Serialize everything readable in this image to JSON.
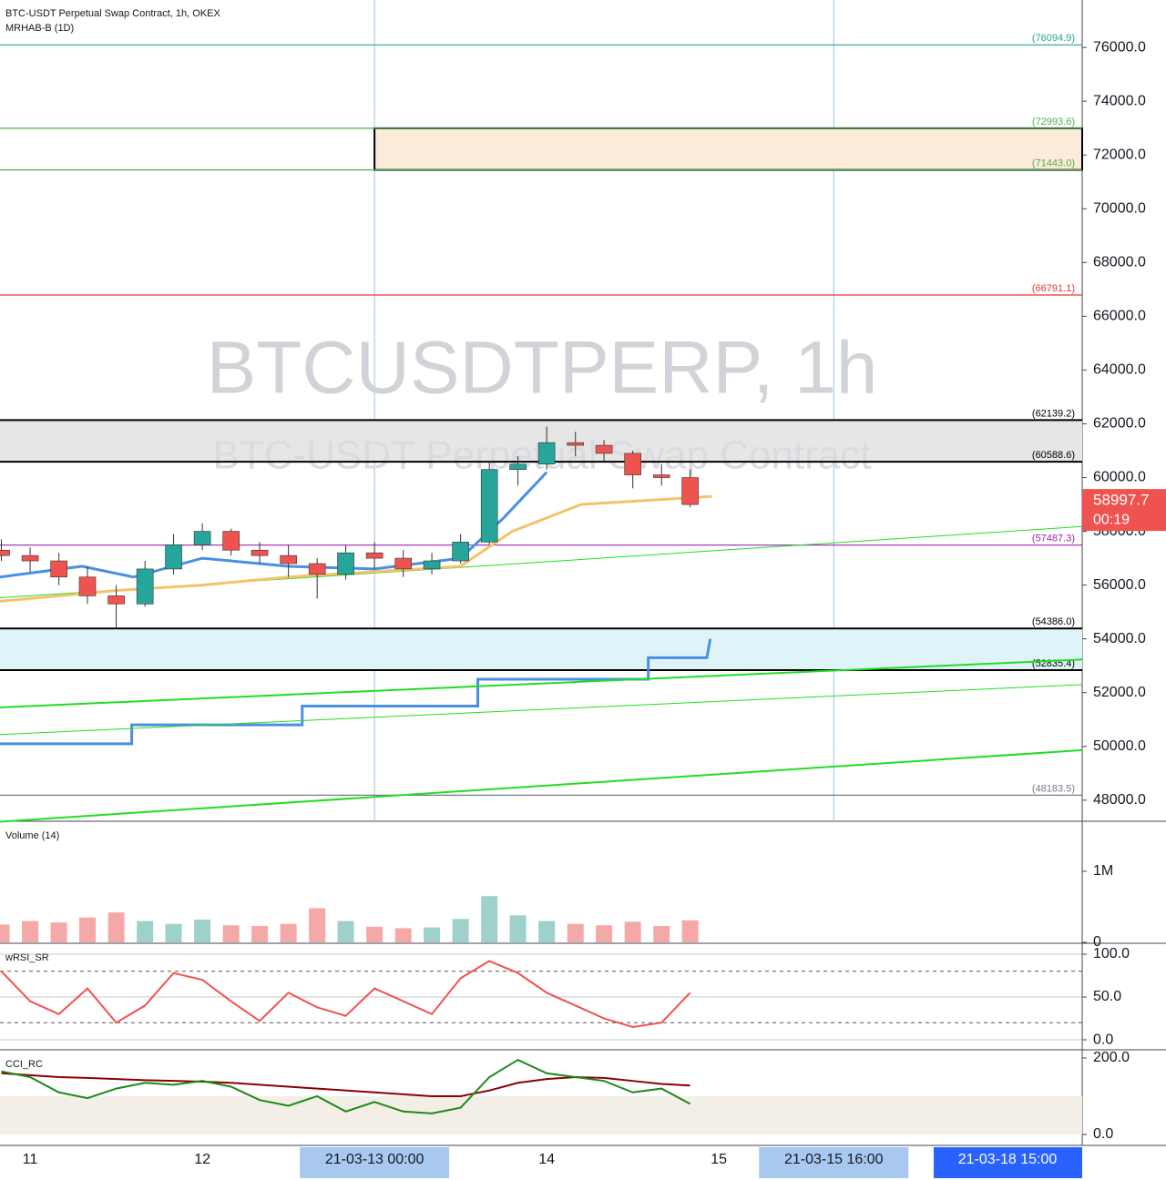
{
  "header": {
    "title": "BTC-USDT Perpetual Swap Contract, 1h, OKEX",
    "subtitle": "MRHAB-B (1D)"
  },
  "watermark": {
    "symbol": "BTCUSDTPERP, 1h",
    "description": "BTC-USDT Perpetual Swap Contract"
  },
  "time_badge": "21-03-18  15:00",
  "chart_data": [
    {
      "type": "candlestick",
      "up_color": "#26a69a",
      "down_color": "#ef5350",
      "x": [
        10.833,
        11,
        11.167,
        11.333,
        11.5,
        11.667,
        11.833,
        12,
        12.167,
        12.333,
        12.5,
        12.667,
        12.833,
        13,
        13.167,
        13.333,
        13.5,
        13.667,
        13.833,
        14,
        14.167,
        14.333,
        14.5,
        14.667,
        14.833
      ],
      "open": [
        57300,
        57100,
        56900,
        56300,
        55600,
        55300,
        56600,
        57500,
        58000,
        57300,
        57100,
        56800,
        56400,
        57200,
        57000,
        56600,
        56900,
        57600,
        60300,
        60500,
        61300,
        61200,
        60900,
        60100,
        60000
      ],
      "high": [
        57700,
        57400,
        57200,
        56700,
        56000,
        56900,
        57900,
        58300,
        58100,
        57600,
        57500,
        57000,
        57500,
        57600,
        57300,
        57200,
        57900,
        60600,
        60800,
        61900,
        61700,
        61400,
        61000,
        60500,
        60300
      ],
      "low": [
        56900,
        56500,
        56000,
        55300,
        54400,
        55200,
        56400,
        57300,
        57100,
        56800,
        56300,
        55500,
        56200,
        56600,
        56300,
        56400,
        56800,
        57500,
        59700,
        60300,
        60800,
        60600,
        59600,
        59700,
        58900
      ],
      "close": [
        57100,
        56900,
        56300,
        55600,
        55300,
        56600,
        57500,
        58000,
        57300,
        57100,
        56800,
        56400,
        57200,
        57000,
        56600,
        56900,
        57600,
        60300,
        60500,
        61300,
        61200,
        60900,
        60100,
        60000,
        58997.7
      ],
      "xlim": [
        10.825,
        17.11
      ],
      "xticks": [
        {
          "value": 11,
          "label": "11"
        },
        {
          "value": 12,
          "label": "12"
        },
        {
          "value": 13,
          "label": "21-03-13  00:00"
        },
        {
          "value": 14,
          "label": "14"
        },
        {
          "value": 15,
          "label": "15"
        },
        {
          "value": 15.667,
          "label": "21-03-15  16:00"
        }
      ],
      "ylim": [
        47215,
        77765
      ],
      "yticks": [
        {
          "value": 48000,
          "label": "48000.0"
        },
        {
          "value": 50000,
          "label": "50000.0"
        },
        {
          "value": 52000,
          "label": "52000.0"
        },
        {
          "value": 54000,
          "label": "54000.0"
        },
        {
          "value": 56000,
          "label": "56000.0"
        },
        {
          "value": 58000,
          "label": "58000.0"
        },
        {
          "value": 60000,
          "label": "60000.0"
        },
        {
          "value": 62000,
          "label": "62000.0"
        },
        {
          "value": 64000,
          "label": "64000.0"
        },
        {
          "value": 66000,
          "label": "66000.0"
        },
        {
          "value": 68000,
          "label": "68000.0"
        },
        {
          "value": 70000,
          "label": "70000.0"
        },
        {
          "value": 72000,
          "label": "72000.0"
        },
        {
          "value": 74000,
          "label": "74000.0"
        },
        {
          "value": 76000,
          "label": "76000.0"
        }
      ],
      "levels": [
        {
          "value": 76094.9,
          "label": "(76094.9)",
          "color": "#26a69a"
        },
        {
          "value": 72993.6,
          "label": "(72993.6)",
          "color": "#4caf50"
        },
        {
          "value": 71443.0,
          "label": "(71443.0)",
          "color": "#4caf50"
        },
        {
          "value": 66791.1,
          "label": "(66791.1)",
          "color": "#e53935"
        },
        {
          "value": 62139.2,
          "label": "(62139.2)",
          "color": "#000000"
        },
        {
          "value": 60588.6,
          "label": "(60588.6)",
          "color": "#000000"
        },
        {
          "value": 57487.3,
          "label": "(57487.3)",
          "color": "#9c27b0"
        },
        {
          "value": 54386.0,
          "label": "(54386.0)",
          "color": "#000000"
        },
        {
          "value": 52835.4,
          "label": "(52835.4)",
          "color": "#000000"
        },
        {
          "value": 48183.5,
          "label": "(48183.5)",
          "color": "#787b86"
        }
      ],
      "zones": [
        {
          "low": 71443.0,
          "high": 72993.6,
          "start": 13,
          "color": "#fdebd9"
        },
        {
          "low": 60588.6,
          "high": 62139.2,
          "start": 10.825,
          "color": "#e6e6e6"
        },
        {
          "low": 52835.4,
          "high": 54386.0,
          "start": 10.825,
          "color": "#dff4f9"
        }
      ],
      "lines": [
        {
          "color": "#4a90e2",
          "width": 3,
          "x": [
            10.825,
            11.59,
            11.59,
            12.58,
            12.58,
            13.6,
            13.6,
            14.59,
            14.59,
            14.93,
            14.95
          ],
          "values": [
            50100,
            50100,
            50800,
            50800,
            51500,
            51500,
            52500,
            52500,
            53300,
            53300,
            54000
          ]
        },
        {
          "color": "#22dd22",
          "width": 2,
          "x": [
            10.825,
            17.11
          ],
          "values": [
            51450,
            53230
          ]
        },
        {
          "color": "#22dd22",
          "width": 1,
          "x": [
            10.825,
            17.11
          ],
          "values": [
            50440,
            52300
          ]
        },
        {
          "color": "#22dd22",
          "width": 2,
          "x": [
            10.825,
            17.11
          ],
          "values": [
            47200,
            49860
          ]
        },
        {
          "color": "#22dd22",
          "width": 1,
          "x": [
            10.825,
            17.11
          ],
          "values": [
            55530,
            58180
          ]
        },
        {
          "color": "#f5c26b",
          "width": 3,
          "x": [
            10.825,
            11.5,
            12,
            12.5,
            13,
            13.5,
            13.8,
            14.2,
            14.96
          ],
          "values": [
            55400,
            55800,
            56000,
            56300,
            56500,
            56700,
            58000,
            59000,
            59300
          ]
        },
        {
          "color": "#4a90e2",
          "width": 3,
          "x": [
            10.825,
            11.3,
            11.6,
            12,
            12.5,
            13,
            13.5,
            13.75,
            14
          ],
          "values": [
            56300,
            56700,
            56300,
            57000,
            56700,
            56600,
            57000,
            58500,
            60200
          ]
        }
      ],
      "last_price": {
        "value": 58997.7,
        "countdown": "00:19",
        "color": "#ef5350"
      }
    },
    {
      "type": "bar",
      "title": "Volume (14)",
      "values": [
        250000,
        300000,
        280000,
        350000,
        420000,
        300000,
        260000,
        320000,
        240000,
        230000,
        260000,
        480000,
        300000,
        220000,
        200000,
        210000,
        330000,
        650000,
        380000,
        300000,
        260000,
        240000,
        290000,
        230000,
        310000
      ],
      "ylim": [
        0,
        1690000
      ],
      "yticks": [
        0,
        {
          "value": 1000000,
          "label": "1M"
        }
      ]
    },
    {
      "type": "line",
      "title": "wRSI_SR",
      "color": "#ef5350",
      "values": [
        80,
        45,
        30,
        60,
        20,
        40,
        78,
        70,
        45,
        22,
        55,
        38,
        28,
        60,
        45,
        30,
        72,
        92,
        78,
        55,
        40,
        25,
        15,
        20,
        55
      ],
      "ylim": [
        -10.6,
        111.7
      ],
      "yticks": [
        {
          "value": 0,
          "label": "0.0"
        },
        {
          "value": 50,
          "label": "50.0"
        },
        {
          "value": 100,
          "label": "100.0"
        }
      ],
      "bands": [
        20,
        80
      ]
    },
    {
      "type": "line",
      "title": "CCI_RC",
      "color": "#1b8a1b",
      "values": [
        165,
        150,
        110,
        95,
        120,
        135,
        130,
        140,
        125,
        90,
        75,
        100,
        60,
        85,
        60,
        55,
        70,
        150,
        195,
        160,
        150,
        140,
        110,
        120,
        80
      ],
      "signal": {
        "color": "#8b0000",
        "values": [
          160,
          155,
          150,
          148,
          145,
          142,
          140,
          138,
          135,
          130,
          125,
          120,
          115,
          110,
          105,
          100,
          100,
          115,
          135,
          145,
          150,
          148,
          140,
          132,
          128
        ]
      },
      "zone": [
        0,
        100
      ],
      "ylim": [
        -28.6,
        219
      ],
      "yticks": [
        {
          "value": 0,
          "label": "0.0"
        },
        {
          "value": 200,
          "label": "200.0"
        }
      ]
    }
  ]
}
